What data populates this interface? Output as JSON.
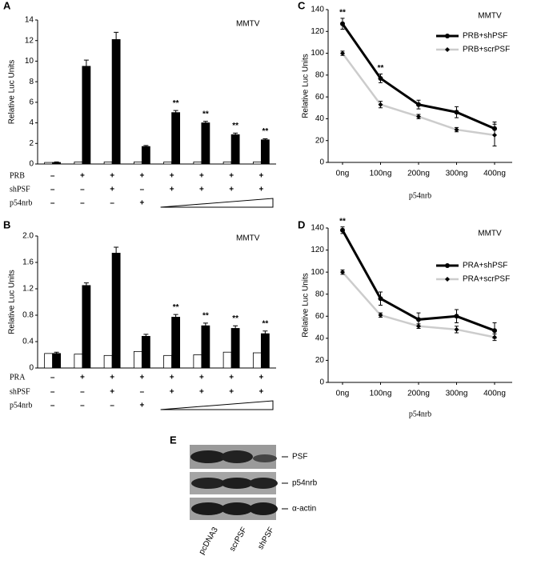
{
  "chart_data": [
    {
      "panel": "A",
      "type": "bar",
      "ylabel": "Relative Luc Units",
      "annotation": "MMTV",
      "categories": [
        null,
        null,
        null,
        null,
        null,
        null,
        null,
        null
      ],
      "series": [
        {
          "color": "#ffffff",
          "values": [
            0.15,
            0.2,
            0.2,
            0.2,
            0.2,
            0.2,
            0.2,
            0.2
          ]
        },
        {
          "color": "#000000",
          "values": [
            0.15,
            9.5,
            12.1,
            1.7,
            5.0,
            4.0,
            2.85,
            2.35
          ],
          "errors": [
            0.05,
            0.6,
            0.7,
            0.1,
            0.2,
            0.15,
            0.15,
            0.1
          ]
        }
      ],
      "stars": [
        null,
        null,
        null,
        null,
        "**",
        "**",
        "**",
        "**"
      ],
      "ylim": [
        0,
        14
      ],
      "yticks": [
        0,
        2,
        4,
        6,
        8,
        10,
        12,
        14
      ],
      "conditions": [
        {
          "label": "PRB",
          "marks": [
            "–",
            "+",
            "+",
            "+",
            "+",
            "+",
            "+",
            "+"
          ]
        },
        {
          "label": "shPSF",
          "marks": [
            "–",
            "–",
            "+",
            "–",
            "+",
            "+",
            "+",
            "+"
          ]
        },
        {
          "label": "p54nrb",
          "marks": [
            "–",
            "–",
            "–",
            "+"
          ]
        }
      ]
    },
    {
      "panel": "B",
      "type": "bar",
      "ylabel": "Relative Luc Units",
      "annotation": "MMTV",
      "categories": [
        null,
        null,
        null,
        null,
        null,
        null,
        null,
        null
      ],
      "series": [
        {
          "color": "#ffffff",
          "values": [
            0.22,
            0.21,
            0.19,
            0.25,
            0.19,
            0.2,
            0.24,
            0.23
          ]
        },
        {
          "color": "#000000",
          "values": [
            0.22,
            1.25,
            1.74,
            0.48,
            0.77,
            0.64,
            0.6,
            0.52
          ],
          "errors": [
            0.02,
            0.04,
            0.09,
            0.03,
            0.04,
            0.04,
            0.04,
            0.04
          ]
        }
      ],
      "stars": [
        null,
        null,
        null,
        null,
        "**",
        "**",
        "**",
        "**"
      ],
      "ylim": [
        0,
        2
      ],
      "yticks": [
        0,
        0.4,
        0.8,
        1.2,
        1.6,
        {
          "value": 2,
          "label": "2.0"
        }
      ],
      "conditions": [
        {
          "label": "PRA",
          "marks": [
            "–",
            "+",
            "+",
            "+",
            "+",
            "+",
            "+",
            "+"
          ]
        },
        {
          "label": "shPSF",
          "marks": [
            "–",
            "–",
            "+",
            "–",
            "+",
            "+",
            "+",
            "+"
          ]
        },
        {
          "label": "p54nrb",
          "marks": [
            "–",
            "–",
            "–",
            "+"
          ]
        }
      ]
    },
    {
      "panel": "C",
      "type": "line",
      "ylabel": "Relative Luc Units",
      "xlabel": "p54nrb",
      "annotation": "MMTV",
      "categories": [
        "0ng",
        "100ng",
        "200ng",
        "300ng",
        "400ng"
      ],
      "series": [
        {
          "name": "PRB+shPSF",
          "color": "#000000",
          "marker": "circle",
          "values": [
            127,
            77,
            53,
            46,
            31
          ],
          "errors": [
            5,
            4,
            4,
            5,
            6
          ]
        },
        {
          "name": "PRB+scrPSF",
          "color": "#cccccc",
          "marker": "diamond",
          "values": [
            100,
            53,
            42,
            30,
            25
          ],
          "errors": [
            2,
            3,
            2,
            2,
            10
          ]
        }
      ],
      "stars": [
        "**",
        "**",
        null,
        null,
        null
      ],
      "ylim": [
        0,
        140
      ],
      "yticks": [
        0,
        20,
        40,
        60,
        80,
        100,
        120,
        140
      ]
    },
    {
      "panel": "D",
      "type": "line",
      "ylabel": "Relative Luc Units",
      "xlabel": "p54nrb",
      "annotation": "MMTV",
      "categories": [
        "0ng",
        "100ng",
        "200ng",
        "300ng",
        "400ng"
      ],
      "series": [
        {
          "name": "PRA+shPSF",
          "color": "#000000",
          "marker": "circle",
          "values": [
            138,
            76,
            57,
            60,
            47
          ],
          "errors": [
            3,
            6,
            6,
            6,
            7
          ]
        },
        {
          "name": "PRA+scrPSF",
          "color": "#cccccc",
          "marker": "diamond",
          "values": [
            100,
            61,
            51,
            48,
            41
          ],
          "errors": [
            2,
            2,
            2,
            3,
            3
          ]
        }
      ],
      "stars": [
        "**",
        null,
        null,
        null,
        null
      ],
      "ylim": [
        0,
        140
      ],
      "yticks": [
        0,
        20,
        40,
        60,
        80,
        100,
        120,
        140
      ]
    }
  ],
  "blot": {
    "panel": "E",
    "rows": [
      "PSF",
      "p54nrb",
      "α-actin"
    ],
    "lanes": [
      "pcDNA3",
      "scrPSF",
      "shPSF"
    ]
  }
}
